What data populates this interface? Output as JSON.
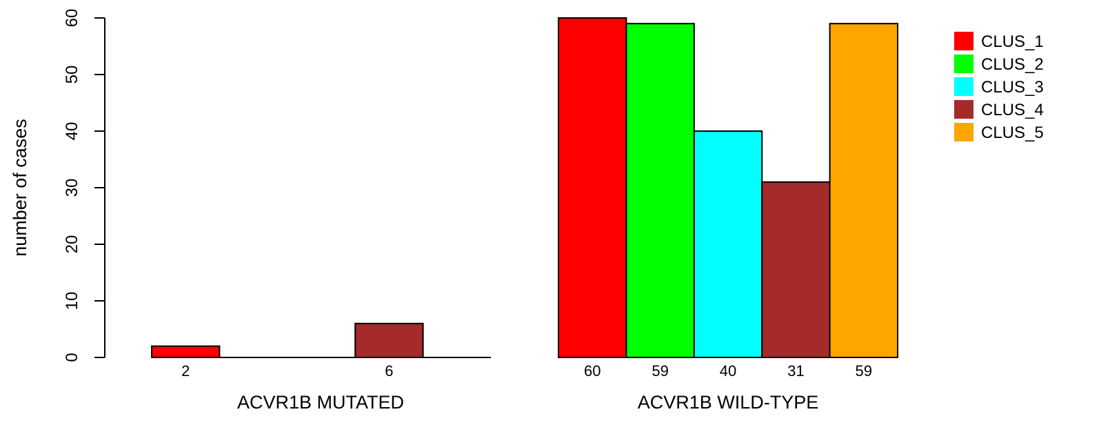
{
  "chart_data": {
    "type": "bar",
    "ylabel": "number of cases",
    "ylim": [
      0,
      60
    ],
    "yticks": [
      0,
      10,
      20,
      30,
      40,
      50,
      60
    ],
    "series_names": [
      "CLUS_1",
      "CLUS_2",
      "CLUS_3",
      "CLUS_4",
      "CLUS_5"
    ],
    "colors": [
      "#ff0000",
      "#00ff00",
      "#00ffff",
      "#a52a2a",
      "#ffa500"
    ],
    "groups": [
      {
        "xlabel": "ACVR1B MUTATED",
        "values": [
          2,
          0,
          0,
          6,
          0
        ],
        "labels": [
          "2",
          "",
          "",
          "6",
          ""
        ]
      },
      {
        "xlabel": "ACVR1B WILD-TYPE",
        "values": [
          60,
          59,
          40,
          31,
          59
        ],
        "labels": [
          "60",
          "59",
          "40",
          "31",
          "59"
        ]
      }
    ],
    "legend": {
      "position": "top-right",
      "entries": [
        "CLUS_1",
        "CLUS_2",
        "CLUS_3",
        "CLUS_4",
        "CLUS_5"
      ]
    }
  }
}
